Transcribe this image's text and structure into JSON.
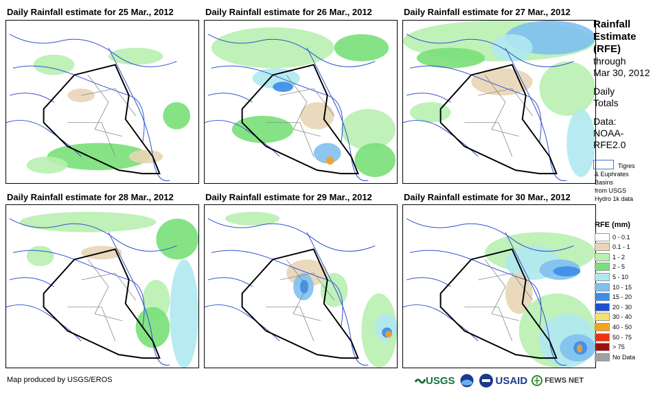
{
  "panels": [
    {
      "title": "Daily Rainfall estimate for 25 Mar., 2012"
    },
    {
      "title": "Daily Rainfall estimate for 26 Mar., 2012"
    },
    {
      "title": "Daily Rainfall estimate for 27 Mar., 2012"
    },
    {
      "title": "Daily Rainfall estimate for 28 Mar., 2012"
    },
    {
      "title": "Daily Rainfall estimate for 29 Mar., 2012"
    },
    {
      "title": "Daily Rainfall estimate for 30 Mar., 2012"
    }
  ],
  "sidebar": {
    "title_lines": [
      "Rainfall",
      "Estimate",
      "(RFE)"
    ],
    "through": "through",
    "date": "Mar 30, 2012",
    "daily": "Daily",
    "totals": "Totals",
    "data_label": "Data:",
    "data_source_1": "NOAA-",
    "data_source_2": "RFE2.0",
    "basin_line1": "Tigres",
    "basin_line2": "& Euphrates",
    "basin_line3": "Basins",
    "basin_line4": "from USGS",
    "basin_line5": "Hydro 1k data"
  },
  "legend": {
    "title": "RFE (mm)",
    "items": [
      {
        "label": "0 - 0.1",
        "color": "#ffffff"
      },
      {
        "label": "0.1 - 1",
        "color": "#e8d5b5"
      },
      {
        "label": "1 - 2",
        "color": "#b8f0b0"
      },
      {
        "label": "2 - 5",
        "color": "#78e078"
      },
      {
        "label": "5 - 10",
        "color": "#b0e8f0"
      },
      {
        "label": "10 - 15",
        "color": "#80c0f0"
      },
      {
        "label": "15 - 20",
        "color": "#3c8ce8"
      },
      {
        "label": "20 - 30",
        "color": "#1f4fd0"
      },
      {
        "label": "30 - 40",
        "color": "#f8e070"
      },
      {
        "label": "40 - 50",
        "color": "#f8a020"
      },
      {
        "label": "50 - 75",
        "color": "#f03010"
      },
      {
        "label": "> 75",
        "color": "#a01010"
      },
      {
        "label": "No Data",
        "color": "#a0a0a0"
      }
    ]
  },
  "footer": {
    "credit": "Map produced by USGS/EROS",
    "logos": [
      "USGS",
      "NOAA",
      "USAID",
      "FEWS NET"
    ]
  }
}
